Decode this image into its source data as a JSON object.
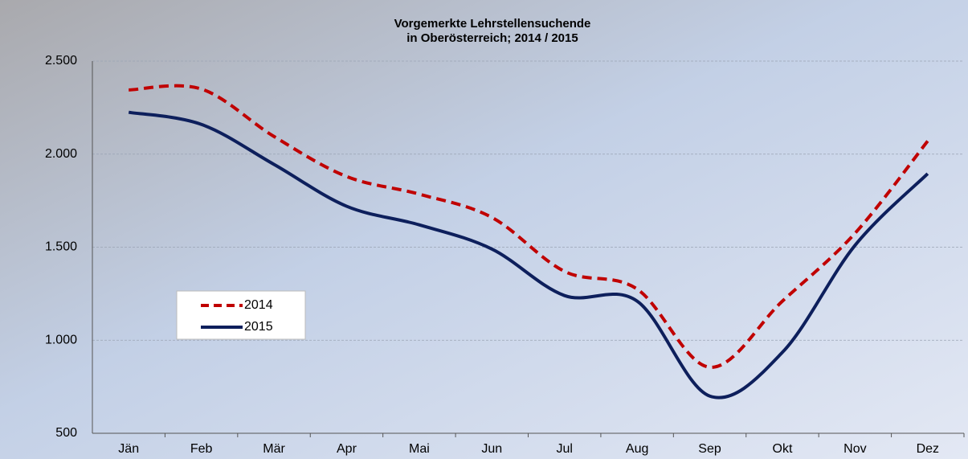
{
  "chart_data": {
    "type": "line",
    "title": "Vorgemerkte Lehrstellensuchende",
    "subtitle": "in Oberösterreich; 2014 / 2015",
    "categories": [
      "Jän",
      "Feb",
      "Mär",
      "Apr",
      "Mai",
      "Jun",
      "Jul",
      "Aug",
      "Sep",
      "Okt",
      "Nov",
      "Dez"
    ],
    "series": [
      {
        "name": "2014",
        "color": "#c00000",
        "dashed": true,
        "values": [
          2345,
          2350,
          2095,
          1880,
          1785,
          1660,
          1370,
          1275,
          855,
          1210,
          1575,
          2070
        ]
      },
      {
        "name": "2015",
        "color": "#0d1f5c",
        "dashed": false,
        "values": [
          2225,
          2160,
          1945,
          1720,
          1620,
          1490,
          1240,
          1210,
          700,
          935,
          1510,
          1895
        ]
      }
    ],
    "ylim": [
      500,
      2500
    ],
    "yticks": [
      500,
      {
        "value": 1000,
        "label": "1.000"
      },
      {
        "value": 1500,
        "label": "1.500"
      },
      {
        "value": 2000,
        "label": "2.000"
      },
      {
        "value": 2500,
        "label": "2.500"
      }
    ],
    "grid": true,
    "legend": "center-left"
  }
}
